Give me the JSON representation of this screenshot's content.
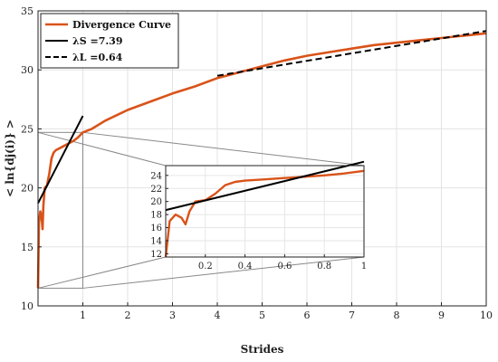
{
  "chart_data": {
    "type": "line",
    "xlabel": "Strides",
    "ylabel": "< ln{dj(i)} >",
    "xlim": [
      0,
      10
    ],
    "ylim": [
      10,
      35
    ],
    "grid": true,
    "legend_position": "top-left",
    "x_ticks": [
      "1",
      "2",
      "3",
      "4",
      "5",
      "6",
      "7",
      "8",
      "9",
      "10"
    ],
    "y_ticks": [
      "10",
      "15",
      "20",
      "25",
      "30",
      "35"
    ],
    "colors": {
      "divergence": "#d95319",
      "fit_s": "#000000",
      "fit_l": "#000000",
      "zoom_box": "#888888"
    },
    "series": [
      {
        "name": "Divergence Curve",
        "x": [
          0.0,
          0.02,
          0.05,
          0.08,
          0.1,
          0.12,
          0.15,
          0.2,
          0.25,
          0.3,
          0.35,
          0.4,
          0.5,
          0.6,
          0.7,
          0.8,
          0.9,
          1.0,
          1.2,
          1.5,
          2.0,
          2.5,
          3.0,
          3.5,
          4.0,
          4.5,
          5.0,
          5.5,
          6.0,
          6.5,
          7.0,
          7.5,
          8.0,
          8.5,
          9.0,
          9.5,
          10.0
        ],
        "y": [
          11.5,
          17.0,
          18.0,
          17.5,
          16.5,
          18.5,
          20.0,
          20.2,
          21.2,
          22.5,
          23.0,
          23.2,
          23.4,
          23.6,
          23.8,
          24.0,
          24.3,
          24.7,
          25.0,
          25.7,
          26.6,
          27.3,
          28.0,
          28.6,
          29.3,
          29.8,
          30.3,
          30.8,
          31.2,
          31.5,
          31.8,
          32.1,
          32.3,
          32.5,
          32.7,
          32.9,
          33.1
        ]
      },
      {
        "name": "λS =7.39",
        "x": [
          0,
          1
        ],
        "y": [
          18.7,
          26.1
        ]
      },
      {
        "name": "λL =0.64",
        "x": [
          4,
          10
        ],
        "y": [
          29.5,
          33.3
        ]
      }
    ],
    "zoom_region": {
      "x": [
        0,
        1
      ],
      "y": [
        11.5,
        24.7
      ]
    },
    "inset": {
      "xlim": [
        0.0,
        1.0
      ],
      "ylim": [
        11.5,
        25.5
      ],
      "x_ticks": [
        "0.2",
        "0.4",
        "0.6",
        "0.8",
        "1"
      ],
      "y_ticks": [
        "12",
        "14",
        "16",
        "18",
        "20",
        "22",
        "24"
      ]
    }
  }
}
